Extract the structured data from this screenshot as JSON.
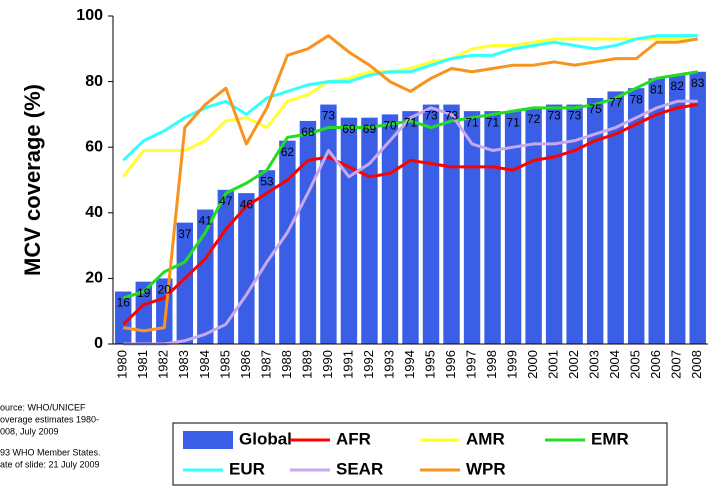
{
  "chart_data": {
    "type": "combo",
    "y_label": "MCV coverage (%)",
    "categories": [
      "1980",
      "1981",
      "1982",
      "1983",
      "1984",
      "1985",
      "1986",
      "1987",
      "1988",
      "1989",
      "1990",
      "1991",
      "1992",
      "1993",
      "1994",
      "1995",
      "1996",
      "1997",
      "1998",
      "1999",
      "2000",
      "2001",
      "2002",
      "2003",
      "2004",
      "2005",
      "2006",
      "2007",
      "2008"
    ],
    "ylim": [
      0,
      100
    ],
    "yticks": [
      0,
      20,
      40,
      60,
      80,
      100
    ],
    "grid": false,
    "series": [
      {
        "name": "Global",
        "type": "bar",
        "color": "#3a5fe6",
        "values": [
          16,
          19,
          20,
          37,
          41,
          47,
          46,
          53,
          62,
          68,
          73,
          69,
          69,
          70,
          71,
          73,
          73,
          71,
          71,
          71,
          72,
          73,
          73,
          75,
          77,
          78,
          81,
          82,
          83
        ]
      },
      {
        "name": "AFR",
        "type": "line",
        "color": "#ff0000",
        "values": [
          6,
          12,
          14,
          20,
          26,
          35,
          42,
          46,
          50,
          56,
          57,
          54,
          51,
          52,
          56,
          55,
          54,
          54,
          54,
          53,
          56,
          57,
          59,
          62,
          64,
          67,
          70,
          72,
          73
        ]
      },
      {
        "name": "AMR",
        "type": "line",
        "color": "#ffff33",
        "values": [
          51,
          59,
          59,
          59,
          62,
          68,
          69,
          66,
          74,
          76,
          80,
          81,
          83,
          83,
          84,
          86,
          87,
          90,
          91,
          91,
          92,
          93,
          93,
          93,
          93,
          93,
          93,
          93,
          94
        ]
      },
      {
        "name": "EMR",
        "type": "line",
        "color": "#22dd22",
        "values": [
          14,
          16,
          22,
          25,
          34,
          46,
          49,
          53,
          63,
          64,
          66,
          66,
          66,
          67,
          68,
          66,
          68,
          69,
          70,
          71,
          72,
          72,
          72,
          73,
          75,
          78,
          81,
          82,
          83
        ]
      },
      {
        "name": "EUR",
        "type": "line",
        "color": "#33ffff",
        "values": [
          56,
          62,
          65,
          69,
          72,
          74,
          70,
          75,
          77,
          79,
          80,
          80,
          82,
          83,
          83,
          85,
          87,
          88,
          88,
          90,
          91,
          92,
          91,
          90,
          91,
          93,
          94,
          94,
          94
        ]
      },
      {
        "name": "SEAR",
        "type": "line",
        "color": "#c8a8ee",
        "values": [
          0,
          0,
          0,
          1,
          3,
          6,
          15,
          25,
          34,
          46,
          59,
          51,
          55,
          62,
          69,
          72,
          70,
          61,
          59,
          60,
          61,
          61,
          62,
          64,
          66,
          69,
          72,
          74,
          74
        ]
      },
      {
        "name": "WPR",
        "type": "line",
        "color": "#f7931e",
        "values": [
          5,
          4,
          5,
          66,
          73,
          78,
          61,
          72,
          88,
          90,
          94,
          89,
          85,
          80,
          77,
          81,
          84,
          83,
          84,
          85,
          85,
          86,
          85,
          86,
          87,
          87,
          92,
          92,
          93
        ]
      }
    ]
  },
  "notes": [
    "ource: WHO/UNICEF",
    "overage estimates 1980-",
    "008, July 2009",
    "93 WHO Member States.",
    "ate of slide: 21 July 2009"
  ]
}
